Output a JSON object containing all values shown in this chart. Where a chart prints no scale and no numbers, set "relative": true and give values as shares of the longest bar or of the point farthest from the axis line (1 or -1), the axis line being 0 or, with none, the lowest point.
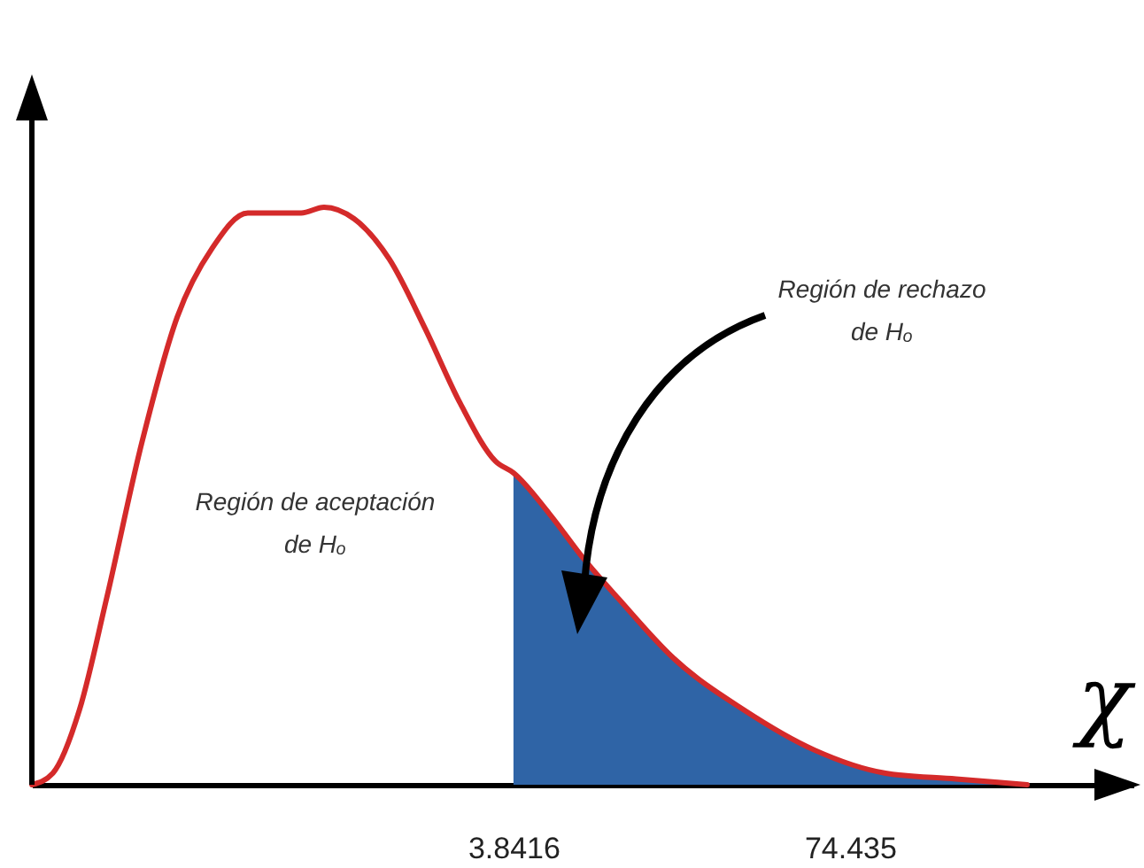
{
  "chart_data": {
    "type": "line",
    "relative": true,
    "xlabel": "χ",
    "xlim": [
      -97.2,
      133.9
    ],
    "xticks": [
      3.8416,
      74.435
    ],
    "grid": false,
    "annotations": [
      "Región de rechazo de Hₒ",
      "Región de aceptación de Hₒ"
    ],
    "series": [
      {
        "type": "area",
        "color": "#2f64a6",
        "x": [
          3.8416,
          11.3,
          18.7,
          26.1,
          37.3,
          52.1,
          67.0,
          81.9,
          96.7,
          111.6
        ],
        "values": [
          0.54,
          0.47,
          0.39,
          0.32,
          0.22,
          0.13,
          0.06,
          0.02,
          0.01,
          0
        ]
      },
      {
        "color": "#d42a2a",
        "x": [
          -97.2,
          -92.8,
          -87.2,
          -81.6,
          -74.2,
          -66.7,
          -59.3,
          -51.9,
          -40.7,
          -35.9,
          -29.6,
          -22.2,
          -14.7,
          -7.3,
          0.1,
          3.8416,
          11.3,
          18.7,
          26.1,
          37.3,
          52.1,
          67.0,
          81.9,
          96.7,
          111.6
        ],
        "values": [
          0,
          0.02,
          0.13,
          0.32,
          0.59,
          0.81,
          0.93,
          0.99,
          0.99,
          1,
          0.98,
          0.91,
          0.79,
          0.66,
          0.56,
          0.54,
          0.47,
          0.39,
          0.32,
          0.22,
          0.13,
          0.06,
          0.02,
          0.01,
          0
        ]
      }
    ]
  }
}
